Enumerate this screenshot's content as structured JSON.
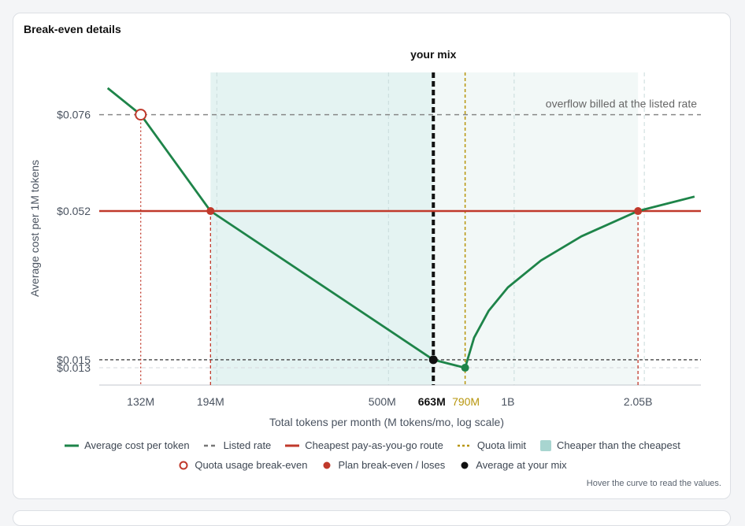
{
  "card": {
    "title": "Break-even details",
    "hint": "Hover the curve to read the values."
  },
  "chart_data": {
    "type": "line",
    "x_scale": "log",
    "xlabel": "Total tokens per month (M tokens/mo, log scale)",
    "ylabel": "Average cost per 1M tokens",
    "xlim": [
      105,
      2900
    ],
    "ylim": [
      0.0087,
      0.0865
    ],
    "x_ticks": [
      {
        "value": 132,
        "label": "132M"
      },
      {
        "value": 194,
        "label": "194M"
      },
      {
        "value": 500,
        "label": "500M"
      },
      {
        "value": 663,
        "label": "663M"
      },
      {
        "value": 790,
        "label": "790M"
      },
      {
        "value": 1000,
        "label": "1B"
      },
      {
        "value": 2050,
        "label": "2.05B"
      }
    ],
    "y_ticks": [
      {
        "value": 0.076,
        "label": "$0.076"
      },
      {
        "value": 0.052,
        "label": "$0.052"
      },
      {
        "value": 0.015,
        "label": "$0.015"
      },
      {
        "value": 0.013,
        "label": "$0.013"
      }
    ],
    "series": [
      {
        "name": "Average cost per token",
        "color": "#1e8449",
        "points": [
          [
            110,
            0.0826
          ],
          [
            132,
            0.076
          ],
          [
            194,
            0.052
          ],
          [
            663,
            0.015
          ],
          [
            790,
            0.013
          ],
          [
            830,
            0.0205
          ],
          [
            900,
            0.0272
          ],
          [
            1000,
            0.033
          ],
          [
            1200,
            0.0397
          ],
          [
            1500,
            0.0457
          ],
          [
            2050,
            0.052
          ],
          [
            2800,
            0.0556
          ]
        ]
      }
    ],
    "listed_rate": {
      "y": 0.076,
      "label": "overflow billed at the listed rate",
      "color": "#888888"
    },
    "cheapest_route": {
      "y": 0.052,
      "color": "#c0392b"
    },
    "your_mix_average": {
      "y": 0.015,
      "color": "#555555"
    },
    "quota_limit": {
      "x": 790,
      "color": "#b7950b"
    },
    "your_mix": {
      "x": 663,
      "label": "your mix",
      "color": "#111111"
    },
    "cheaper_band": {
      "x0": 194,
      "x1": 2050,
      "color": "#e4f3f2"
    },
    "quota_breakeven": {
      "x": 132,
      "y": 0.076,
      "color": "#c0392b"
    },
    "plan_breakeven_points": [
      [
        194,
        0.052
      ],
      [
        2050,
        0.052
      ]
    ],
    "average_point": [
      663,
      0.015
    ],
    "quota_end_point": [
      790,
      0.013
    ],
    "vertical_grid": [
      194,
      500,
      1000,
      2050
    ],
    "legend": {
      "row1": [
        {
          "kind": "line",
          "color": "#1e8449",
          "label": "Average cost per token"
        },
        {
          "kind": "dash",
          "color": "#777777",
          "label": "Listed rate"
        },
        {
          "kind": "line",
          "color": "#c0392b",
          "label": "Cheapest pay-as-you-go route"
        },
        {
          "kind": "dot-line",
          "color": "#b7950b",
          "label": "Quota limit"
        },
        {
          "kind": "box",
          "color": "#a8d5d0",
          "label": "Cheaper than the cheapest"
        }
      ],
      "row2": [
        {
          "kind": "ring",
          "color": "#c0392b",
          "label": "Quota usage break-even"
        },
        {
          "kind": "dot",
          "color": "#c0392b",
          "label": "Plan break-even / loses"
        },
        {
          "kind": "dot",
          "color": "#111111",
          "label": "Average at your mix"
        }
      ]
    }
  }
}
